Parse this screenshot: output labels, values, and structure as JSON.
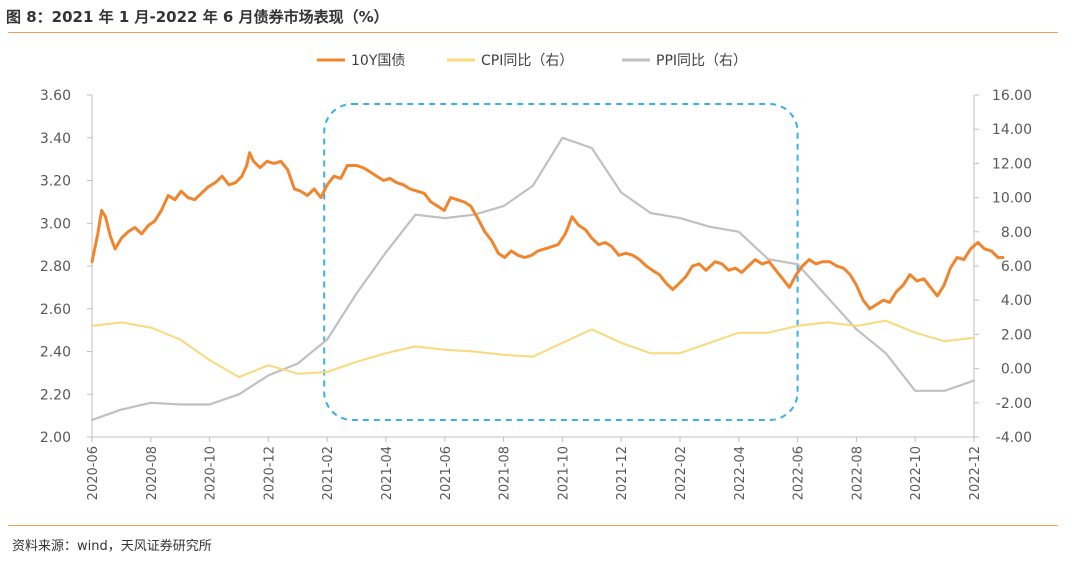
{
  "figure": {
    "title": "图 8：2021 年 1 月-2022 年 6 月债券市场表现（%）",
    "source": "资料来源：wind，天风证券研究所"
  },
  "colors": {
    "yield": "#F0852D",
    "cpi": "#FAD97A",
    "ppi": "#C0C0C0",
    "highlight": "#3AB0E8",
    "accent_rule": "#F0A050"
  },
  "chart_data": {
    "type": "line",
    "title": "2021 年 1 月-2022 年 6 月债券市场表现（%）",
    "xlabel": "",
    "ylabel_left": "%",
    "ylabel_right": "%",
    "ylim_left": [
      2.0,
      3.6
    ],
    "ylim_right": [
      -4.0,
      16.0
    ],
    "x_range": [
      "2020-06",
      "2022-12"
    ],
    "x_ticks": [
      "2020-06",
      "2020-08",
      "2020-10",
      "2020-12",
      "2021-02",
      "2021-04",
      "2021-06",
      "2021-08",
      "2021-10",
      "2021-12",
      "2022-02",
      "2022-04",
      "2022-06",
      "2022-08",
      "2022-10",
      "2022-12"
    ],
    "y_ticks_left": [
      "3.60",
      "3.40",
      "3.20",
      "3.00",
      "2.80",
      "2.60",
      "2.40",
      "2.20",
      "2.00"
    ],
    "y_ticks_right": [
      "16.00",
      "14.00",
      "12.00",
      "10.00",
      "8.00",
      "6.00",
      "4.00",
      "2.00",
      "0.00",
      "-2.00",
      "-4.00"
    ],
    "legend": [
      "10Y国债",
      "CPI同比（右）",
      "PPI同比（右）"
    ],
    "legend_position": "top-center",
    "highlight_period": [
      "2021-02",
      "2022-06"
    ],
    "series": [
      {
        "name": "10Y国债",
        "axis": "left",
        "points": [
          [
            "2020-06-01",
            2.82
          ],
          [
            "2020-06-07",
            2.95
          ],
          [
            "2020-06-11",
            3.06
          ],
          [
            "2020-06-15",
            3.03
          ],
          [
            "2020-06-20",
            2.94
          ],
          [
            "2020-06-25",
            2.88
          ],
          [
            "2020-07-01",
            2.93
          ],
          [
            "2020-07-08",
            2.96
          ],
          [
            "2020-07-15",
            2.98
          ],
          [
            "2020-07-22",
            2.95
          ],
          [
            "2020-07-29",
            2.99
          ],
          [
            "2020-08-05",
            3.01
          ],
          [
            "2020-08-12",
            3.06
          ],
          [
            "2020-08-19",
            3.13
          ],
          [
            "2020-08-26",
            3.11
          ],
          [
            "2020-09-02",
            3.15
          ],
          [
            "2020-09-09",
            3.12
          ],
          [
            "2020-09-16",
            3.11
          ],
          [
            "2020-09-23",
            3.14
          ],
          [
            "2020-09-30",
            3.17
          ],
          [
            "2020-10-07",
            3.19
          ],
          [
            "2020-10-14",
            3.22
          ],
          [
            "2020-10-21",
            3.18
          ],
          [
            "2020-10-28",
            3.19
          ],
          [
            "2020-11-04",
            3.22
          ],
          [
            "2020-11-09",
            3.27
          ],
          [
            "2020-11-12",
            3.33
          ],
          [
            "2020-11-16",
            3.29
          ],
          [
            "2020-11-23",
            3.26
          ],
          [
            "2020-11-30",
            3.29
          ],
          [
            "2020-12-07",
            3.28
          ],
          [
            "2020-12-14",
            3.29
          ],
          [
            "2020-12-21",
            3.25
          ],
          [
            "2020-12-28",
            3.16
          ],
          [
            "2021-01-04",
            3.15
          ],
          [
            "2021-01-11",
            3.13
          ],
          [
            "2021-01-18",
            3.16
          ],
          [
            "2021-01-25",
            3.12
          ],
          [
            "2021-02-01",
            3.18
          ],
          [
            "2021-02-08",
            3.22
          ],
          [
            "2021-02-15",
            3.21
          ],
          [
            "2021-02-22",
            3.27
          ],
          [
            "2021-03-01",
            3.27
          ],
          [
            "2021-03-08",
            3.26
          ],
          [
            "2021-03-15",
            3.24
          ],
          [
            "2021-03-22",
            3.22
          ],
          [
            "2021-03-29",
            3.2
          ],
          [
            "2021-04-05",
            3.21
          ],
          [
            "2021-04-12",
            3.19
          ],
          [
            "2021-04-19",
            3.18
          ],
          [
            "2021-04-26",
            3.16
          ],
          [
            "2021-05-03",
            3.15
          ],
          [
            "2021-05-10",
            3.14
          ],
          [
            "2021-05-17",
            3.1
          ],
          [
            "2021-05-24",
            3.08
          ],
          [
            "2021-05-31",
            3.06
          ],
          [
            "2021-06-07",
            3.12
          ],
          [
            "2021-06-14",
            3.11
          ],
          [
            "2021-06-21",
            3.1
          ],
          [
            "2021-06-28",
            3.08
          ],
          [
            "2021-07-05",
            3.02
          ],
          [
            "2021-07-12",
            2.96
          ],
          [
            "2021-07-19",
            2.92
          ],
          [
            "2021-07-26",
            2.86
          ],
          [
            "2021-08-02",
            2.84
          ],
          [
            "2021-08-09",
            2.87
          ],
          [
            "2021-08-16",
            2.85
          ],
          [
            "2021-08-23",
            2.84
          ],
          [
            "2021-08-30",
            2.85
          ],
          [
            "2021-09-06",
            2.87
          ],
          [
            "2021-09-13",
            2.88
          ],
          [
            "2021-09-20",
            2.89
          ],
          [
            "2021-09-27",
            2.9
          ],
          [
            "2021-10-04",
            2.95
          ],
          [
            "2021-10-11",
            3.03
          ],
          [
            "2021-10-18",
            2.99
          ],
          [
            "2021-10-25",
            2.97
          ],
          [
            "2021-11-01",
            2.93
          ],
          [
            "2021-11-08",
            2.9
          ],
          [
            "2021-11-15",
            2.91
          ],
          [
            "2021-11-22",
            2.89
          ],
          [
            "2021-11-29",
            2.85
          ],
          [
            "2021-12-06",
            2.86
          ],
          [
            "2021-12-13",
            2.85
          ],
          [
            "2021-12-20",
            2.83
          ],
          [
            "2021-12-27",
            2.8
          ],
          [
            "2022-01-03",
            2.78
          ],
          [
            "2022-01-10",
            2.76
          ],
          [
            "2022-01-17",
            2.72
          ],
          [
            "2022-01-24",
            2.69
          ],
          [
            "2022-01-31",
            2.72
          ],
          [
            "2022-02-07",
            2.75
          ],
          [
            "2022-02-14",
            2.8
          ],
          [
            "2022-02-21",
            2.81
          ],
          [
            "2022-02-28",
            2.78
          ],
          [
            "2022-03-07",
            2.82
          ],
          [
            "2022-03-14",
            2.81
          ],
          [
            "2022-03-21",
            2.78
          ],
          [
            "2022-03-28",
            2.79
          ],
          [
            "2022-04-04",
            2.77
          ],
          [
            "2022-04-11",
            2.8
          ],
          [
            "2022-04-18",
            2.83
          ],
          [
            "2022-04-25",
            2.81
          ],
          [
            "2022-05-02",
            2.82
          ],
          [
            "2022-05-09",
            2.78
          ],
          [
            "2022-05-16",
            2.74
          ],
          [
            "2022-05-23",
            2.7
          ],
          [
            "2022-05-30",
            2.76
          ],
          [
            "2022-06-06",
            2.8
          ],
          [
            "2022-06-13",
            2.83
          ],
          [
            "2022-06-20",
            2.81
          ],
          [
            "2022-06-27",
            2.82
          ],
          [
            "2022-07-04",
            2.82
          ],
          [
            "2022-07-11",
            2.8
          ],
          [
            "2022-07-18",
            2.79
          ],
          [
            "2022-07-25",
            2.76
          ],
          [
            "2022-08-01",
            2.71
          ],
          [
            "2022-08-08",
            2.64
          ],
          [
            "2022-08-15",
            2.6
          ],
          [
            "2022-08-22",
            2.62
          ],
          [
            "2022-08-29",
            2.64
          ],
          [
            "2022-09-05",
            2.63
          ],
          [
            "2022-09-12",
            2.68
          ],
          [
            "2022-09-19",
            2.71
          ],
          [
            "2022-09-26",
            2.76
          ],
          [
            "2022-10-03",
            2.73
          ],
          [
            "2022-10-10",
            2.74
          ],
          [
            "2022-10-17",
            2.7
          ],
          [
            "2022-10-24",
            2.66
          ],
          [
            "2022-10-31",
            2.71
          ],
          [
            "2022-11-07",
            2.79
          ],
          [
            "2022-11-14",
            2.84
          ],
          [
            "2022-11-21",
            2.83
          ],
          [
            "2022-11-28",
            2.88
          ],
          [
            "2022-12-05",
            2.91
          ],
          [
            "2022-12-12",
            2.88
          ],
          [
            "2022-12-19",
            2.87
          ],
          [
            "2022-12-26",
            2.84
          ],
          [
            "2022-12-31",
            2.84
          ]
        ]
      },
      {
        "name": "CPI同比（右）",
        "axis": "right",
        "points": [
          [
            "2020-06",
            2.5
          ],
          [
            "2020-07",
            2.7
          ],
          [
            "2020-08",
            2.4
          ],
          [
            "2020-09",
            1.7
          ],
          [
            "2020-10",
            0.5
          ],
          [
            "2020-11",
            -0.5
          ],
          [
            "2020-12",
            0.2
          ],
          [
            "2021-01",
            -0.3
          ],
          [
            "2021-02",
            -0.2
          ],
          [
            "2021-03",
            0.4
          ],
          [
            "2021-04",
            0.9
          ],
          [
            "2021-05",
            1.3
          ],
          [
            "2021-06",
            1.1
          ],
          [
            "2021-07",
            1.0
          ],
          [
            "2021-08",
            0.8
          ],
          [
            "2021-09",
            0.7
          ],
          [
            "2021-10",
            1.5
          ],
          [
            "2021-11",
            2.3
          ],
          [
            "2021-12",
            1.5
          ],
          [
            "2022-01",
            0.9
          ],
          [
            "2022-02",
            0.9
          ],
          [
            "2022-03",
            1.5
          ],
          [
            "2022-04",
            2.1
          ],
          [
            "2022-05",
            2.1
          ],
          [
            "2022-06",
            2.5
          ],
          [
            "2022-07",
            2.7
          ],
          [
            "2022-08",
            2.5
          ],
          [
            "2022-09",
            2.8
          ],
          [
            "2022-10",
            2.1
          ],
          [
            "2022-11",
            1.6
          ],
          [
            "2022-12",
            1.8
          ]
        ]
      },
      {
        "name": "PPI同比（右）",
        "axis": "right",
        "points": [
          [
            "2020-06",
            -3.0
          ],
          [
            "2020-07",
            -2.4
          ],
          [
            "2020-08",
            -2.0
          ],
          [
            "2020-09",
            -2.1
          ],
          [
            "2020-10",
            -2.1
          ],
          [
            "2020-11",
            -1.5
          ],
          [
            "2020-12",
            -0.4
          ],
          [
            "2021-01",
            0.3
          ],
          [
            "2021-02",
            1.7
          ],
          [
            "2021-03",
            4.4
          ],
          [
            "2021-04",
            6.8
          ],
          [
            "2021-05",
            9.0
          ],
          [
            "2021-06",
            8.8
          ],
          [
            "2021-07",
            9.0
          ],
          [
            "2021-08",
            9.5
          ],
          [
            "2021-09",
            10.7
          ],
          [
            "2021-10",
            13.5
          ],
          [
            "2021-11",
            12.9
          ],
          [
            "2021-12",
            10.3
          ],
          [
            "2022-01",
            9.1
          ],
          [
            "2022-02",
            8.8
          ],
          [
            "2022-03",
            8.3
          ],
          [
            "2022-04",
            8.0
          ],
          [
            "2022-05",
            6.4
          ],
          [
            "2022-06",
            6.1
          ],
          [
            "2022-07",
            4.2
          ],
          [
            "2022-08",
            2.3
          ],
          [
            "2022-09",
            0.9
          ],
          [
            "2022-10",
            -1.3
          ],
          [
            "2022-11",
            -1.3
          ],
          [
            "2022-12",
            -0.7
          ]
        ]
      }
    ]
  }
}
